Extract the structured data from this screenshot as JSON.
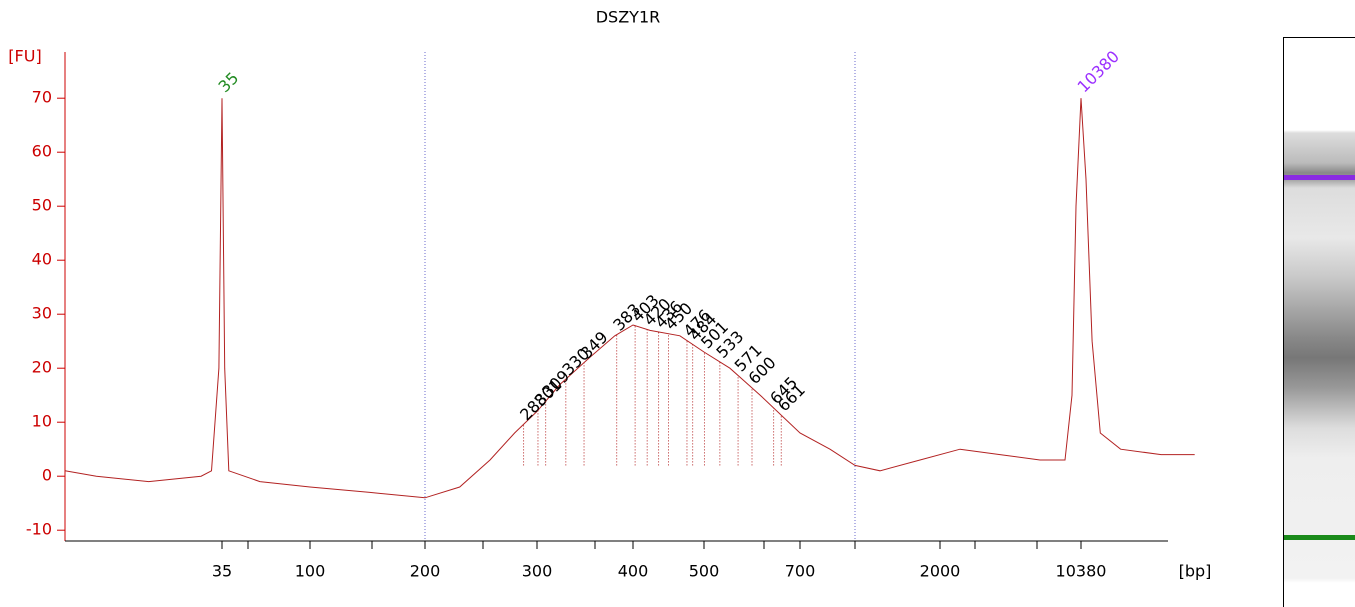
{
  "chart_data": {
    "type": "line",
    "title": "DSZY1R",
    "y_label": "[FU]",
    "x_label": "[bp]",
    "color": "#b22222",
    "x": [
      20,
      23,
      28,
      33,
      34,
      34.7,
      35,
      37,
      40,
      63,
      100,
      152,
      200,
      231,
      258,
      280,
      300,
      324,
      355,
      381,
      400,
      424,
      466,
      500,
      554,
      617,
      700,
      979,
      1211,
      1443,
      1814,
      3189,
      5566,
      7943,
      9429,
      9845,
      10083,
      10380,
      10670,
      11027,
      11500,
      12680,
      15030,
      16980
    ],
    "values": [
      1,
      0,
      -1,
      0,
      1,
      20,
      70,
      20,
      1,
      -1,
      -2,
      -3,
      -4,
      -2,
      3,
      8,
      12,
      17,
      22,
      26,
      28,
      27,
      26,
      23,
      20,
      15,
      8,
      5,
      2,
      1,
      3,
      5,
      4,
      3,
      3,
      15,
      50,
      70,
      55,
      25,
      8,
      5,
      4,
      4
    ],
    "xlim": [
      20,
      17000
    ],
    "xticks": [
      35,
      100,
      200,
      300,
      400,
      500,
      700,
      2000,
      10380
    ],
    "ylim": [
      -12,
      78
    ],
    "yticks": [
      -10,
      0,
      10,
      20,
      30,
      40,
      50,
      60,
      70
    ],
    "marker_peaks": [
      {
        "label": 35,
        "color": "#228b22"
      },
      {
        "label": 10380,
        "color": "#9b30ff"
      }
    ],
    "peak_labels": [
      288,
      301,
      309,
      330,
      349,
      383,
      403,
      420,
      436,
      450,
      476,
      484,
      501,
      533,
      571,
      600,
      645,
      661
    ]
  }
}
